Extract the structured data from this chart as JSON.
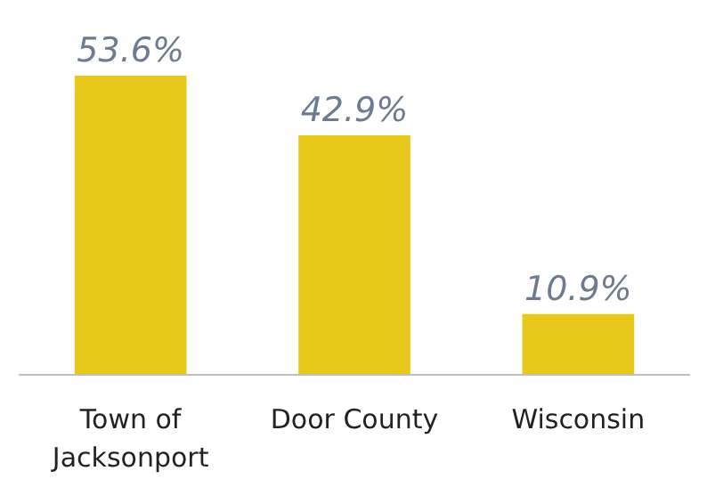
{
  "chart_data": {
    "type": "bar",
    "categories": [
      "Town of Jacksonport",
      "Door County",
      "Wisconsin"
    ],
    "values": [
      53.6,
      42.9,
      10.9
    ],
    "value_labels": [
      "53.6%",
      "42.9%",
      "10.9%"
    ],
    "color": "#e9c81c",
    "tick_labels": "x",
    "grid": false
  }
}
